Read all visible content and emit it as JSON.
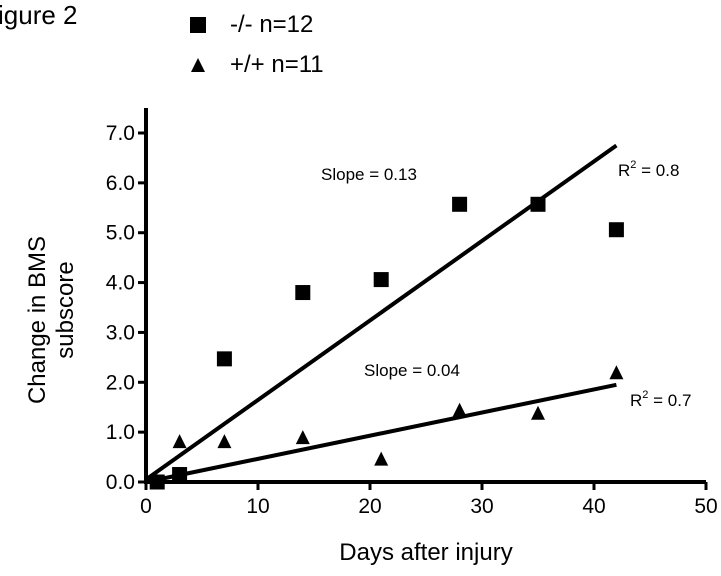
{
  "figure_title": "igure 2",
  "chart_data": {
    "type": "scatter",
    "xlabel": "Days after injury",
    "ylabel_lines": [
      "Change in BMS",
      "subscore"
    ],
    "xlim": [
      0,
      50
    ],
    "ylim": [
      0,
      7.0
    ],
    "x_ticks": [
      "0",
      "10",
      "20",
      "30",
      "40",
      "50"
    ],
    "y_ticks": [
      "0.0",
      "1.0",
      "2.0",
      "3.0",
      "4.0",
      "5.0",
      "6.0",
      "7.0"
    ],
    "legend_placement": "top",
    "series": [
      {
        "name": "-/- n=12",
        "marker": "square",
        "color": "#000000",
        "x": [
          1,
          3,
          7,
          14,
          21,
          28,
          35,
          42
        ],
        "y": [
          0.0,
          0.15,
          2.47,
          3.8,
          4.06,
          5.57,
          5.57,
          5.06
        ],
        "fit": {
          "x": [
            0,
            42
          ],
          "y": [
            0.05,
            6.75
          ]
        },
        "slope_label": "Slope = 0.13",
        "r2_label": {
          "text": "R",
          "sup": "2",
          "rest": " = 0.8"
        }
      },
      {
        "name": "+/+ n=11",
        "marker": "triangle",
        "color": "#000000",
        "x": [
          1,
          3,
          7,
          14,
          21,
          28,
          35,
          42
        ],
        "y": [
          0.0,
          0.8,
          0.8,
          0.88,
          0.45,
          1.43,
          1.37,
          2.18
        ],
        "fit": {
          "x": [
            0,
            42
          ],
          "y": [
            0.0,
            1.95
          ]
        },
        "slope_label": "Slope = 0.04",
        "r2_label": {
          "text": "R",
          "sup": "2",
          "rest": " = 0.7"
        }
      }
    ]
  }
}
